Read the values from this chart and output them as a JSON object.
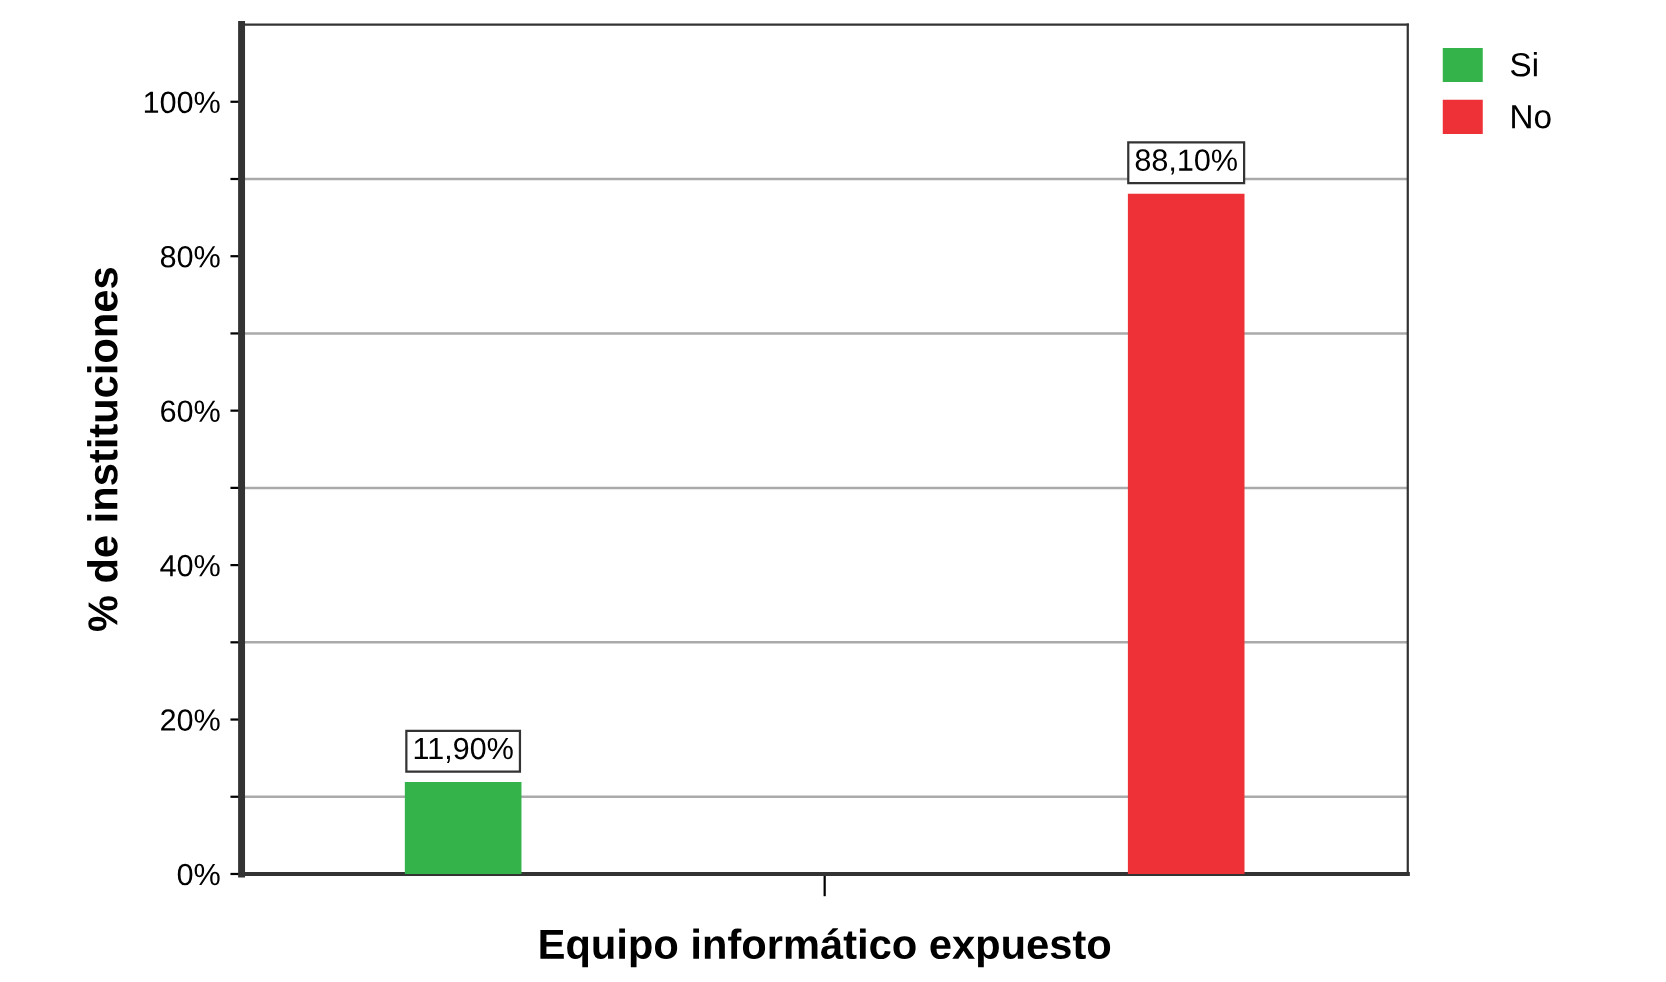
{
  "chart_data": {
    "type": "bar",
    "xlabel": "Equipo informático expuesto",
    "ylabel": "% de instituciones",
    "categories": [
      null
    ],
    "series": [
      {
        "name": "Si",
        "color": "#33b34a",
        "values": [
          11.9
        ],
        "value_labels": [
          "11,90%"
        ]
      },
      {
        "name": "No",
        "color": "#ee3137",
        "values": [
          88.1
        ],
        "value_labels": [
          "88,10%"
        ]
      }
    ],
    "ylim": [
      0,
      110
    ],
    "yticks": [
      {
        "value": 0,
        "label": "0%"
      },
      {
        "value": 10,
        "label": null
      },
      {
        "value": 20,
        "label": "20%"
      },
      {
        "value": 30,
        "label": null
      },
      {
        "value": 40,
        "label": "40%"
      },
      {
        "value": 50,
        "label": null
      },
      {
        "value": 60,
        "label": "60%"
      },
      {
        "value": 70,
        "label": null
      },
      {
        "value": 80,
        "label": "80%"
      },
      {
        "value": 90,
        "label": null
      },
      {
        "value": 100,
        "label": "100%"
      }
    ],
    "grid": "y",
    "legend": "top right"
  }
}
